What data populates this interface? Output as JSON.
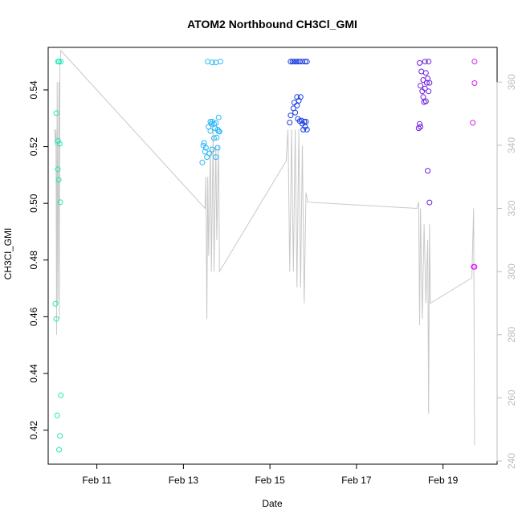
{
  "chart_data": {
    "type": "scatter",
    "title": "ATOM2 Northbound CH3Cl_GMI",
    "xlabel": "Date",
    "ylabel": "CH3Cl_GMI",
    "x_axis": {
      "type": "date",
      "range": [
        "2017-02-09T21:00",
        "2017-02-20T06:00"
      ],
      "ticks": [
        {
          "value": "2017-02-11",
          "label": "Feb 11"
        },
        {
          "value": "2017-02-13",
          "label": "Feb 13"
        },
        {
          "value": "2017-02-15",
          "label": "Feb 15"
        },
        {
          "value": "2017-02-17",
          "label": "Feb 17"
        },
        {
          "value": "2017-02-19",
          "label": "Feb 19"
        }
      ]
    },
    "y_left": {
      "range": [
        0.408,
        0.555
      ],
      "ticks": [
        0.42,
        0.44,
        0.46,
        0.48,
        0.5,
        0.52,
        0.54
      ],
      "tick_labels": [
        "0.42",
        "0.44",
        "0.46",
        "0.48",
        "0.50",
        "0.52",
        "0.54"
      ]
    },
    "y_right": {
      "range": [
        239,
        371
      ],
      "ticks": [
        240,
        260,
        280,
        300,
        320,
        340,
        360
      ],
      "tick_labels": [
        "240",
        "260",
        "280",
        "300",
        "320",
        "340",
        "360"
      ],
      "color": "#bdbdbd"
    },
    "grid": false,
    "legend": "none",
    "series": [
      {
        "kind": "points",
        "axis": "left",
        "marker": "open-circle",
        "colors_by_flight": [
          "#1de9b6",
          "#29b6f6",
          "#1a3be0",
          "#6a1de0",
          "#d81bf0"
        ],
        "points": [
          {
            "t": "2017-02-10T02:30",
            "y": 0.55,
            "c": 0
          },
          {
            "t": "2017-02-10T03:00",
            "y": 0.55,
            "c": 0
          },
          {
            "t": "2017-02-10T04:00",
            "y": 0.55,
            "c": 0
          },
          {
            "t": "2017-02-10T01:30",
            "y": 0.5318,
            "c": 0
          },
          {
            "t": "2017-02-10T02:30",
            "y": 0.522,
            "c": 0
          },
          {
            "t": "2017-02-10T03:20",
            "y": 0.521,
            "c": 0
          },
          {
            "t": "2017-02-10T02:20",
            "y": 0.512,
            "c": 0
          },
          {
            "t": "2017-02-10T02:50",
            "y": 0.5083,
            "c": 0
          },
          {
            "t": "2017-02-10T03:40",
            "y": 0.5004,
            "c": 0
          },
          {
            "t": "2017-02-10T01:00",
            "y": 0.4646,
            "c": 0
          },
          {
            "t": "2017-02-10T01:30",
            "y": 0.4592,
            "c": 0
          },
          {
            "t": "2017-02-10T04:00",
            "y": 0.4323,
            "c": 0
          },
          {
            "t": "2017-02-10T02:00",
            "y": 0.4252,
            "c": 0
          },
          {
            "t": "2017-02-10T03:30",
            "y": 0.418,
            "c": 0
          },
          {
            "t": "2017-02-10T03:00",
            "y": 0.4131,
            "c": 0
          },
          {
            "t": "2017-02-13T13:30",
            "y": 0.55,
            "c": 1
          },
          {
            "t": "2017-02-13T16:00",
            "y": 0.5497,
            "c": 1
          },
          {
            "t": "2017-02-13T18:00",
            "y": 0.5497,
            "c": 1
          },
          {
            "t": "2017-02-13T20:30",
            "y": 0.55,
            "c": 1
          },
          {
            "t": "2017-02-13T19:30",
            "y": 0.5303,
            "c": 1
          },
          {
            "t": "2017-02-13T15:00",
            "y": 0.5288,
            "c": 1
          },
          {
            "t": "2017-02-13T16:00",
            "y": 0.5288,
            "c": 1
          },
          {
            "t": "2017-02-13T15:30",
            "y": 0.528,
            "c": 1
          },
          {
            "t": "2017-02-13T17:00",
            "y": 0.528,
            "c": 1
          },
          {
            "t": "2017-02-13T18:00",
            "y": 0.5283,
            "c": 1
          },
          {
            "t": "2017-02-13T14:00",
            "y": 0.527,
            "c": 1
          },
          {
            "t": "2017-02-13T17:30",
            "y": 0.5265,
            "c": 1
          },
          {
            "t": "2017-02-13T19:00",
            "y": 0.526,
            "c": 1
          },
          {
            "t": "2017-02-13T20:00",
            "y": 0.5253,
            "c": 1
          },
          {
            "t": "2017-02-13T15:00",
            "y": 0.5255,
            "c": 1
          },
          {
            "t": "2017-02-13T19:30",
            "y": 0.5254,
            "c": 1
          },
          {
            "t": "2017-02-13T18:30",
            "y": 0.5232,
            "c": 1
          },
          {
            "t": "2017-02-13T17:00",
            "y": 0.523,
            "c": 1
          },
          {
            "t": "2017-02-13T11:30",
            "y": 0.5213,
            "c": 1
          },
          {
            "t": "2017-02-13T11:00",
            "y": 0.5204,
            "c": 1
          },
          {
            "t": "2017-02-13T12:30",
            "y": 0.5196,
            "c": 1
          },
          {
            "t": "2017-02-13T19:00",
            "y": 0.5196,
            "c": 1
          },
          {
            "t": "2017-02-13T16:00",
            "y": 0.519,
            "c": 1
          },
          {
            "t": "2017-02-13T12:00",
            "y": 0.5182,
            "c": 1
          },
          {
            "t": "2017-02-13T14:30",
            "y": 0.5176,
            "c": 1
          },
          {
            "t": "2017-02-13T18:00",
            "y": 0.5163,
            "c": 1
          },
          {
            "t": "2017-02-13T13:00",
            "y": 0.5163,
            "c": 1
          },
          {
            "t": "2017-02-13T10:30",
            "y": 0.5144,
            "c": 1
          },
          {
            "t": "2017-02-15T11:30",
            "y": 0.55,
            "c": 2
          },
          {
            "t": "2017-02-15T12:30",
            "y": 0.55,
            "c": 2
          },
          {
            "t": "2017-02-15T13:30",
            "y": 0.55,
            "c": 2
          },
          {
            "t": "2017-02-15T14:30",
            "y": 0.55,
            "c": 2
          },
          {
            "t": "2017-02-15T15:30",
            "y": 0.55,
            "c": 2
          },
          {
            "t": "2017-02-15T16:30",
            "y": 0.55,
            "c": 2
          },
          {
            "t": "2017-02-15T18:00",
            "y": 0.55,
            "c": 2
          },
          {
            "t": "2017-02-15T19:30",
            "y": 0.55,
            "c": 2
          },
          {
            "t": "2017-02-15T20:30",
            "y": 0.55,
            "c": 2
          },
          {
            "t": "2017-02-15T15:00",
            "y": 0.5375,
            "c": 2
          },
          {
            "t": "2017-02-15T17:00",
            "y": 0.5375,
            "c": 2
          },
          {
            "t": "2017-02-15T16:00",
            "y": 0.5362,
            "c": 2
          },
          {
            "t": "2017-02-15T13:30",
            "y": 0.5355,
            "c": 2
          },
          {
            "t": "2017-02-15T15:00",
            "y": 0.5345,
            "c": 2
          },
          {
            "t": "2017-02-15T13:00",
            "y": 0.5335,
            "c": 2
          },
          {
            "t": "2017-02-15T14:00",
            "y": 0.532,
            "c": 2
          },
          {
            "t": "2017-02-15T11:30",
            "y": 0.531,
            "c": 2
          },
          {
            "t": "2017-02-15T15:30",
            "y": 0.5298,
            "c": 2
          },
          {
            "t": "2017-02-15T16:30",
            "y": 0.529,
            "c": 2
          },
          {
            "t": "2017-02-15T17:30",
            "y": 0.5292,
            "c": 2
          },
          {
            "t": "2017-02-15T19:00",
            "y": 0.5288,
            "c": 2
          },
          {
            "t": "2017-02-15T20:00",
            "y": 0.5288,
            "c": 2
          },
          {
            "t": "2017-02-15T11:00",
            "y": 0.5285,
            "c": 2
          },
          {
            "t": "2017-02-15T18:00",
            "y": 0.5281,
            "c": 2
          },
          {
            "t": "2017-02-15T19:30",
            "y": 0.527,
            "c": 2
          },
          {
            "t": "2017-02-15T18:30",
            "y": 0.526,
            "c": 2
          },
          {
            "t": "2017-02-15T20:30",
            "y": 0.526,
            "c": 2
          },
          {
            "t": "2017-02-18T11:00",
            "y": 0.5495,
            "c": 3
          },
          {
            "t": "2017-02-18T14:00",
            "y": 0.55,
            "c": 3
          },
          {
            "t": "2017-02-18T16:00",
            "y": 0.55,
            "c": 3
          },
          {
            "t": "2017-02-18T12:00",
            "y": 0.5465,
            "c": 3
          },
          {
            "t": "2017-02-18T14:30",
            "y": 0.546,
            "c": 3
          },
          {
            "t": "2017-02-18T15:30",
            "y": 0.544,
            "c": 3
          },
          {
            "t": "2017-02-18T16:30",
            "y": 0.5425,
            "c": 3
          },
          {
            "t": "2017-02-18T13:00",
            "y": 0.5435,
            "c": 3
          },
          {
            "t": "2017-02-18T15:00",
            "y": 0.5425,
            "c": 3
          },
          {
            "t": "2017-02-18T11:30",
            "y": 0.5415,
            "c": 3
          },
          {
            "t": "2017-02-18T14:00",
            "y": 0.5405,
            "c": 3
          },
          {
            "t": "2017-02-18T12:30",
            "y": 0.5395,
            "c": 3
          },
          {
            "t": "2017-02-18T16:00",
            "y": 0.5395,
            "c": 3
          },
          {
            "t": "2017-02-18T13:00",
            "y": 0.5375,
            "c": 3
          },
          {
            "t": "2017-02-18T14:30",
            "y": 0.536,
            "c": 3
          },
          {
            "t": "2017-02-18T13:30",
            "y": 0.5357,
            "c": 3
          },
          {
            "t": "2017-02-18T11:00",
            "y": 0.528,
            "c": 3
          },
          {
            "t": "2017-02-18T11:30",
            "y": 0.527,
            "c": 3
          },
          {
            "t": "2017-02-18T10:30",
            "y": 0.5265,
            "c": 3
          },
          {
            "t": "2017-02-18T15:30",
            "y": 0.5115,
            "c": 3
          },
          {
            "t": "2017-02-18T16:30",
            "y": 0.5003,
            "c": 3
          },
          {
            "t": "2017-02-19T17:30",
            "y": 0.55,
            "c": 4
          },
          {
            "t": "2017-02-19T17:30",
            "y": 0.5424,
            "c": 4
          },
          {
            "t": "2017-02-19T16:30",
            "y": 0.5284,
            "c": 4
          },
          {
            "t": "2017-02-19T17:00",
            "y": 0.4776,
            "c": 4
          },
          {
            "t": "2017-02-19T17:30",
            "y": 0.4776,
            "c": 4
          }
        ]
      },
      {
        "kind": "line",
        "axis": "right",
        "color": "#c8c8c8",
        "points": [
          {
            "t": "2017-02-10T00:30",
            "y": 345
          },
          {
            "t": "2017-02-10T01:00",
            "y": 340
          },
          {
            "t": "2017-02-10T01:20",
            "y": 345
          },
          {
            "t": "2017-02-10T01:40",
            "y": 280
          },
          {
            "t": "2017-02-10T02:00",
            "y": 360
          },
          {
            "t": "2017-02-10T02:20",
            "y": 290
          },
          {
            "t": "2017-02-10T02:40",
            "y": 330
          },
          {
            "t": "2017-02-10T03:00",
            "y": 360
          },
          {
            "t": "2017-02-10T03:10",
            "y": 285
          },
          {
            "t": "2017-02-10T03:30",
            "y": 365
          },
          {
            "t": "2017-02-10T04:00",
            "y": 370
          },
          {
            "t": "2017-02-13T12:00",
            "y": 320
          },
          {
            "t": "2017-02-13T12:30",
            "y": 330
          },
          {
            "t": "2017-02-13T13:00",
            "y": 285
          },
          {
            "t": "2017-02-13T13:30",
            "y": 330
          },
          {
            "t": "2017-02-13T14:00",
            "y": 305
          },
          {
            "t": "2017-02-13T15:00",
            "y": 340
          },
          {
            "t": "2017-02-13T15:30",
            "y": 300
          },
          {
            "t": "2017-02-13T16:30",
            "y": 345
          },
          {
            "t": "2017-02-13T17:00",
            "y": 300
          },
          {
            "t": "2017-02-13T18:00",
            "y": 340
          },
          {
            "t": "2017-02-13T18:30",
            "y": 310
          },
          {
            "t": "2017-02-13T19:30",
            "y": 340
          },
          {
            "t": "2017-02-13T20:00",
            "y": 300
          },
          {
            "t": "2017-02-15T09:00",
            "y": 335
          },
          {
            "t": "2017-02-15T10:00",
            "y": 345
          },
          {
            "t": "2017-02-15T11:00",
            "y": 300
          },
          {
            "t": "2017-02-15T12:00",
            "y": 345
          },
          {
            "t": "2017-02-15T13:00",
            "y": 300
          },
          {
            "t": "2017-02-15T14:00",
            "y": 345
          },
          {
            "t": "2017-02-15T15:00",
            "y": 295
          },
          {
            "t": "2017-02-15T16:00",
            "y": 345
          },
          {
            "t": "2017-02-15T17:00",
            "y": 295
          },
          {
            "t": "2017-02-15T18:00",
            "y": 340
          },
          {
            "t": "2017-02-15T19:00",
            "y": 290
          },
          {
            "t": "2017-02-15T20:00",
            "y": 325
          },
          {
            "t": "2017-02-15T21:00",
            "y": 322
          },
          {
            "t": "2017-02-18T09:30",
            "y": 320
          },
          {
            "t": "2017-02-18T10:30",
            "y": 322
          },
          {
            "t": "2017-02-18T11:00",
            "y": 283
          },
          {
            "t": "2017-02-18T11:30",
            "y": 320
          },
          {
            "t": "2017-02-18T12:30",
            "y": 285
          },
          {
            "t": "2017-02-18T13:30",
            "y": 315
          },
          {
            "t": "2017-02-18T14:30",
            "y": 290
          },
          {
            "t": "2017-02-18T15:30",
            "y": 310
          },
          {
            "t": "2017-02-18T16:00",
            "y": 255
          },
          {
            "t": "2017-02-18T16:30",
            "y": 315
          },
          {
            "t": "2017-02-18T17:00",
            "y": 290
          },
          {
            "t": "2017-02-19T16:00",
            "y": 298
          },
          {
            "t": "2017-02-19T16:30",
            "y": 310
          },
          {
            "t": "2017-02-19T17:00",
            "y": 320
          },
          {
            "t": "2017-02-19T17:30",
            "y": 245
          }
        ]
      }
    ]
  }
}
